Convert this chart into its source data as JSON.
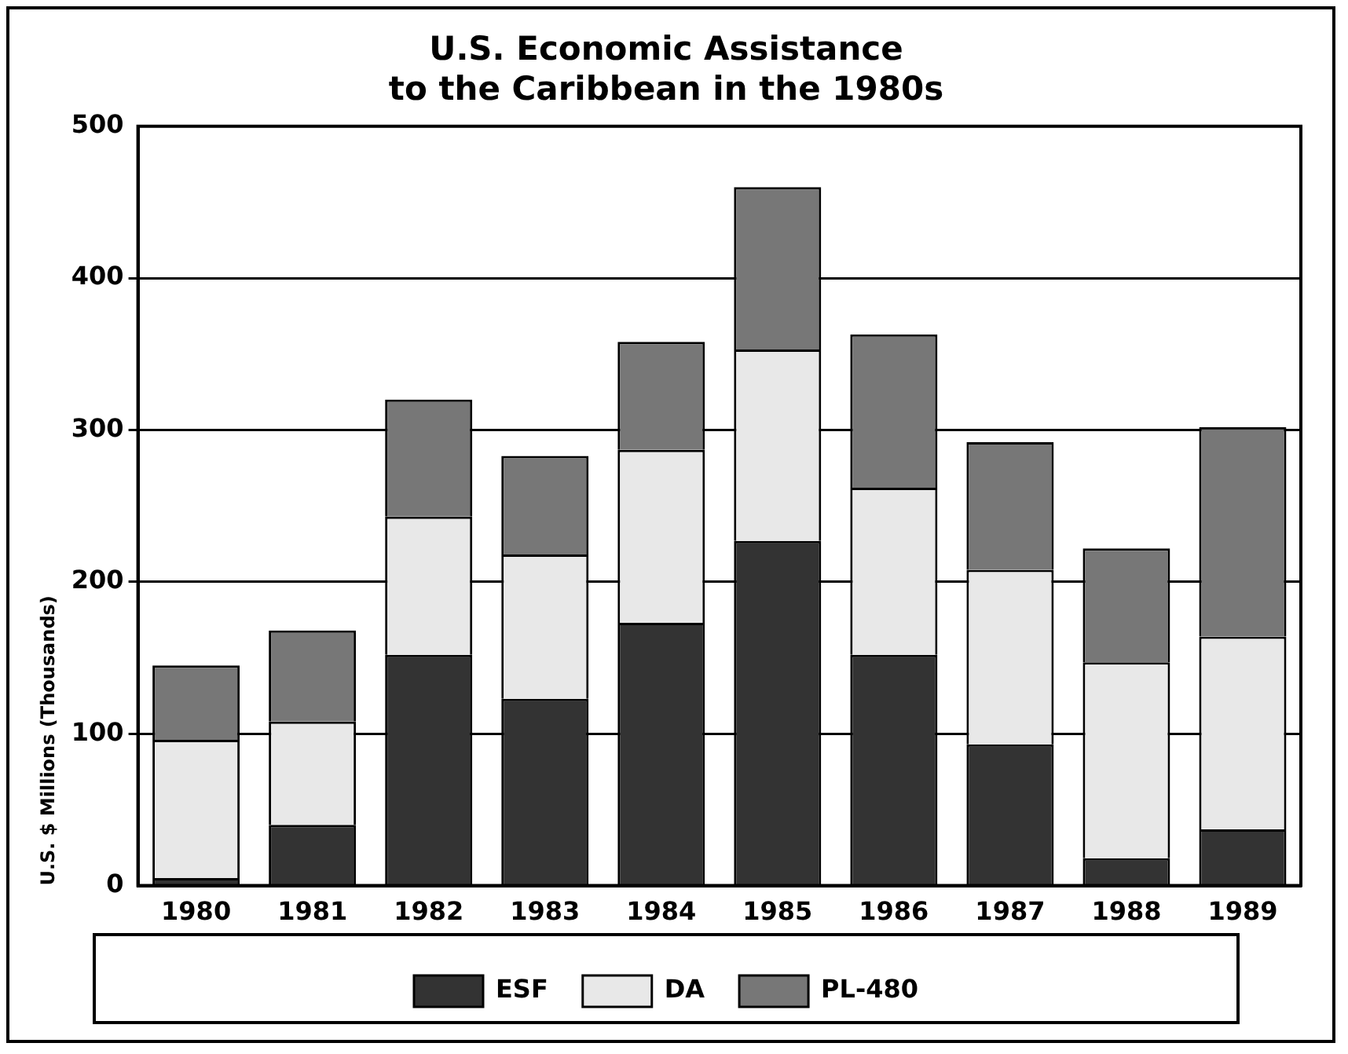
{
  "chart_data": {
    "type": "bar",
    "title": [
      "U.S. Economic Assistance",
      "to the Caribbean in the 1980s"
    ],
    "ylabel": "U.S. $ Millions (Thousands)",
    "categories": [
      "1980",
      "1981",
      "1982",
      "1983",
      "1984",
      "1985",
      "1986",
      "1987",
      "1988",
      "1989"
    ],
    "stacked": true,
    "ylim": [
      0,
      500
    ],
    "yticks": [
      0,
      100,
      200,
      300,
      400,
      500
    ],
    "grid": "y",
    "legend": "bottom",
    "series": [
      {
        "name": "ESF",
        "color": "#333333",
        "values": [
          5,
          40,
          152,
          123,
          173,
          227,
          152,
          93,
          18,
          37
        ]
      },
      {
        "name": "DA",
        "color": "#e8e8e8",
        "values": [
          91,
          68,
          91,
          95,
          114,
          126,
          110,
          115,
          129,
          127
        ]
      },
      {
        "name": "PL-480",
        "color": "#777777",
        "values": [
          49,
          60,
          77,
          65,
          71,
          107,
          101,
          84,
          75,
          138
        ]
      }
    ]
  }
}
